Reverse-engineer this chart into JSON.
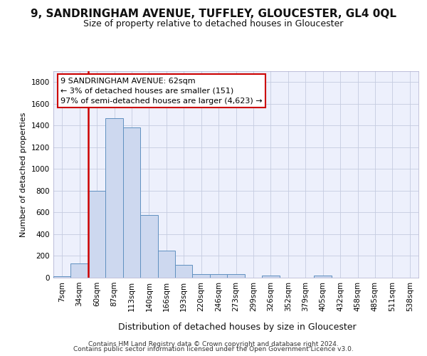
{
  "title1": "9, SANDRINGHAM AVENUE, TUFFLEY, GLOUCESTER, GL4 0QL",
  "title2": "Size of property relative to detached houses in Gloucester",
  "xlabel": "Distribution of detached houses by size in Gloucester",
  "ylabel": "Number of detached properties",
  "footer1": "Contains HM Land Registry data © Crown copyright and database right 2024.",
  "footer2": "Contains public sector information licensed under the Open Government Licence v3.0.",
  "annotation_line1": "9 SANDRINGHAM AVENUE: 62sqm",
  "annotation_line2": "← 3% of detached houses are smaller (151)",
  "annotation_line3": "97% of semi-detached houses are larger (4,623) →",
  "bar_color": "#cdd8ef",
  "bar_edge_color": "#6090c0",
  "vline_color": "#cc0000",
  "ylim": [
    0,
    1900
  ],
  "yticks": [
    0,
    200,
    400,
    600,
    800,
    1000,
    1200,
    1400,
    1600,
    1800
  ],
  "categories": [
    "7sqm",
    "34sqm",
    "60sqm",
    "87sqm",
    "113sqm",
    "140sqm",
    "166sqm",
    "193sqm",
    "220sqm",
    "246sqm",
    "273sqm",
    "299sqm",
    "326sqm",
    "352sqm",
    "379sqm",
    "405sqm",
    "432sqm",
    "458sqm",
    "485sqm",
    "511sqm",
    "538sqm"
  ],
  "values": [
    10,
    130,
    800,
    1470,
    1380,
    575,
    250,
    120,
    35,
    30,
    30,
    0,
    20,
    0,
    0,
    20,
    0,
    0,
    0,
    0,
    0
  ],
  "property_bar_index": 2,
  "bg_color": "#edf0fc",
  "grid_color": "#c5cce0",
  "title1_fontsize": 11,
  "title2_fontsize": 9,
  "xlabel_fontsize": 9,
  "ylabel_fontsize": 8,
  "footer_fontsize": 6.5,
  "tick_fontsize": 7.5,
  "ann_fontsize": 8
}
